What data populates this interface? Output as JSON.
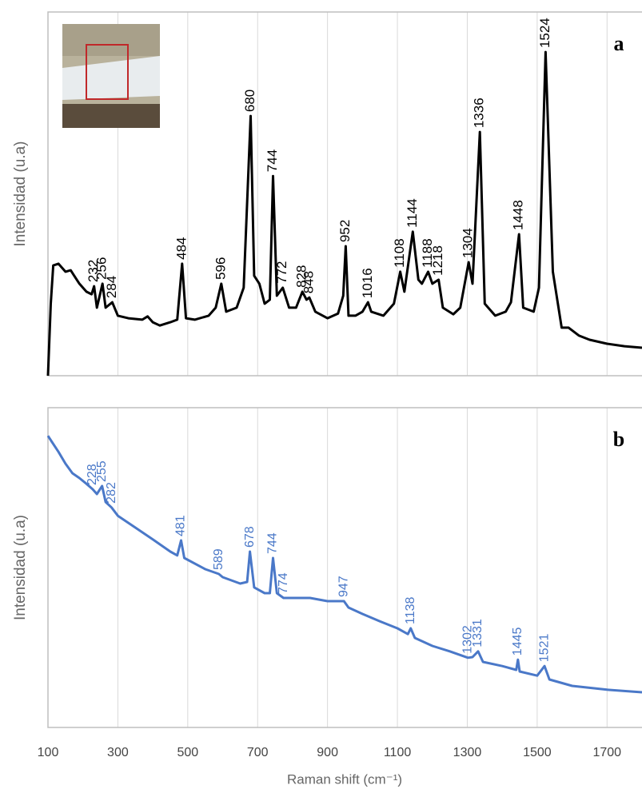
{
  "chart_data": [
    {
      "type": "line",
      "panel_label": "a",
      "y_label": "Intensidad (u.a)",
      "x": [
        100,
        108,
        115,
        130,
        150,
        165,
        175,
        190,
        210,
        225,
        232,
        240,
        256,
        265,
        284,
        300,
        330,
        370,
        385,
        400,
        420,
        450,
        470,
        484,
        495,
        520,
        560,
        580,
        596,
        610,
        640,
        660,
        680,
        690,
        705,
        720,
        735,
        744,
        755,
        772,
        790,
        810,
        828,
        840,
        848,
        865,
        900,
        930,
        945,
        952,
        960,
        980,
        1000,
        1016,
        1025,
        1060,
        1090,
        1108,
        1120,
        1144,
        1160,
        1170,
        1188,
        1200,
        1218,
        1230,
        1260,
        1280,
        1304,
        1315,
        1336,
        1350,
        1380,
        1410,
        1425,
        1448,
        1460,
        1490,
        1505,
        1524,
        1545,
        1570,
        1590,
        1620,
        1650,
        1700,
        1750,
        1800
      ],
      "series": [
        {
          "color": "#000000",
          "values": [
            0,
            19.8,
            30.3,
            30.8,
            28.6,
            29.0,
            27.5,
            25.3,
            23.1,
            22.4,
            24.6,
            18.7,
            25.3,
            18.7,
            20.2,
            16.5,
            15.8,
            15.4,
            16.3,
            14.7,
            13.8,
            14.7,
            15.4,
            30.8,
            15.8,
            15.4,
            16.5,
            18.7,
            25.3,
            17.6,
            18.7,
            24.2,
            71.4,
            27.5,
            25.3,
            19.8,
            20.9,
            54.9,
            22.0,
            24.2,
            18.7,
            18.7,
            23.1,
            20.9,
            21.5,
            17.6,
            15.8,
            17.1,
            22.0,
            35.6,
            16.5,
            16.5,
            17.6,
            20.2,
            17.6,
            16.5,
            19.8,
            28.6,
            23.1,
            39.6,
            26.4,
            25.3,
            28.6,
            25.3,
            26.4,
            18.7,
            16.9,
            18.7,
            31.2,
            25.3,
            67.0,
            19.8,
            16.5,
            17.6,
            20.2,
            38.9,
            18.7,
            17.6,
            24.2,
            89.0,
            28.6,
            13.2,
            13.2,
            11.0,
            9.9,
            8.8,
            8.1,
            7.7
          ]
        }
      ],
      "xlim": [
        100,
        1800
      ],
      "ylim": [
        0,
        100
      ],
      "xticks": [
        100,
        300,
        500,
        700,
        900,
        1100,
        1300,
        1500,
        1700
      ],
      "grid": true,
      "peak_labels": [
        232,
        256,
        284,
        484,
        596,
        680,
        744,
        772,
        828,
        848,
        952,
        1016,
        1108,
        1144,
        1188,
        1218,
        1304,
        1336,
        1448,
        1524
      ]
    },
    {
      "type": "line",
      "panel_label": "b",
      "y_label": "Intensidad (u.a)",
      "x_label": "Raman shift (cm⁻¹)",
      "x": [
        100,
        110,
        130,
        150,
        170,
        190,
        210,
        228,
        240,
        255,
        265,
        282,
        300,
        350,
        400,
        450,
        470,
        481,
        490,
        550,
        589,
        600,
        650,
        670,
        678,
        690,
        720,
        735,
        744,
        755,
        774,
        800,
        850,
        900,
        947,
        960,
        1000,
        1050,
        1100,
        1130,
        1138,
        1150,
        1200,
        1250,
        1302,
        1315,
        1331,
        1345,
        1400,
        1440,
        1445,
        1450,
        1500,
        1521,
        1535,
        1600,
        1700,
        1800
      ],
      "series": [
        {
          "color": "#4a78c8",
          "values": [
            91.2,
            89.5,
            86.2,
            82.5,
            79.5,
            78,
            76.2,
            74.5,
            73,
            75.5,
            70.5,
            68.8,
            66.2,
            62.5,
            58.8,
            55,
            53.8,
            58.5,
            53,
            49.5,
            48,
            47,
            45,
            45.5,
            55,
            43.8,
            42,
            42,
            53,
            42,
            40.5,
            40.5,
            40.5,
            39.5,
            39.5,
            37.5,
            35.5,
            33.2,
            31,
            29.2,
            31,
            28,
            25.5,
            23.8,
            21.8,
            22,
            23.8,
            20.5,
            19.2,
            18,
            21.2,
            17.5,
            16.2,
            19.2,
            15,
            13,
            11.8,
            11
          ]
        }
      ],
      "xlim": [
        100,
        1800
      ],
      "ylim": [
        0,
        100
      ],
      "xticks": [
        100,
        300,
        500,
        700,
        900,
        1100,
        1300,
        1500,
        1700
      ],
      "grid": true,
      "peak_labels": [
        228,
        255,
        282,
        481,
        589,
        678,
        744,
        774,
        947,
        1138,
        1302,
        1331,
        1445,
        1521
      ]
    }
  ]
}
